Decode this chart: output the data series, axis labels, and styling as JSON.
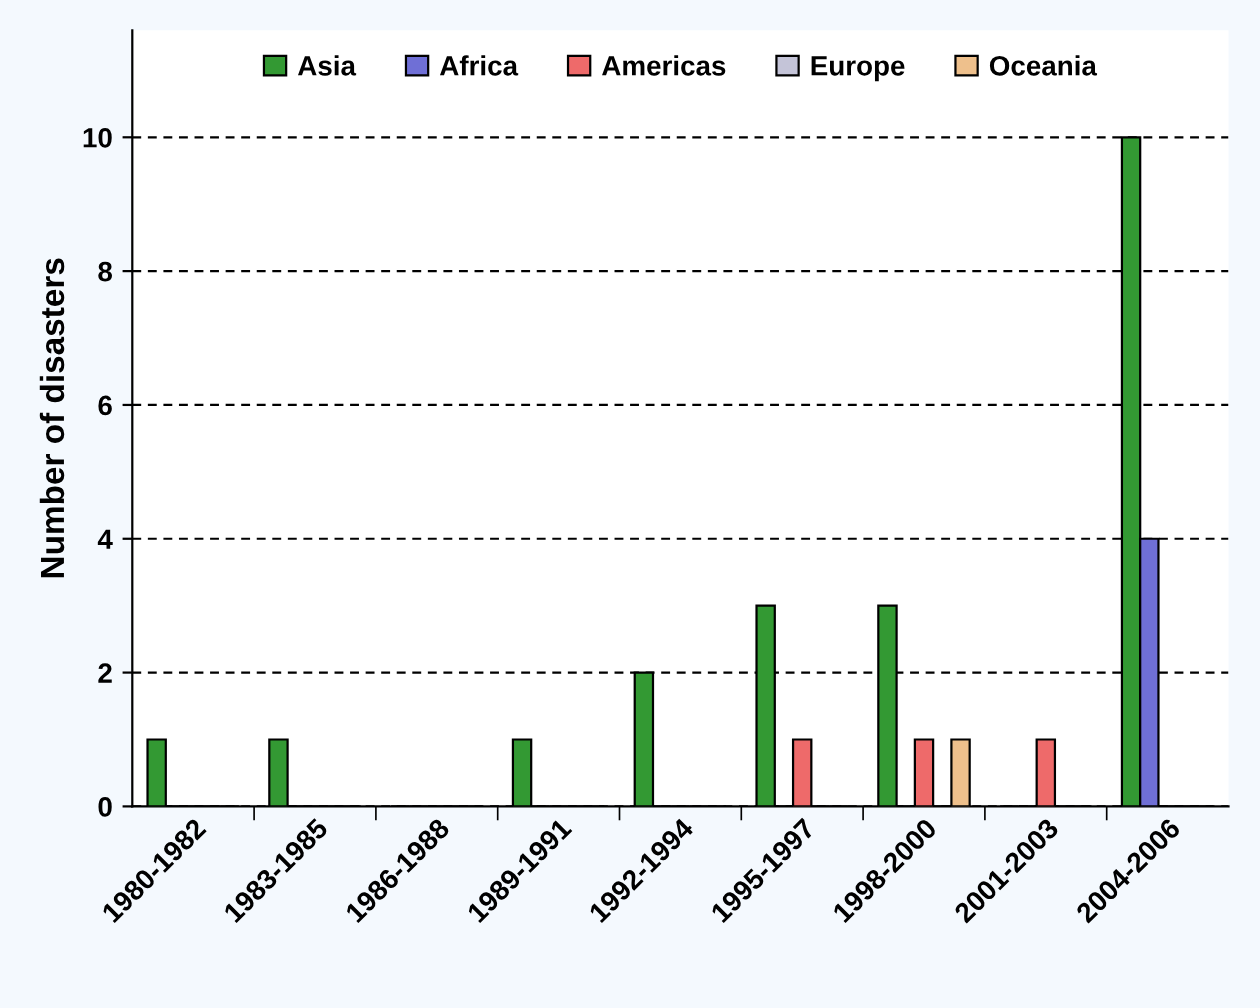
{
  "chart_data": {
    "type": "bar",
    "ylabel": "Number of disasters",
    "categories": [
      "1980-1982",
      "1983-1985",
      "1986-1988",
      "1989-1991",
      "1992-1994",
      "1995-1997",
      "1998-2000",
      "2001-2003",
      "2004-2006"
    ],
    "series": [
      {
        "name": "Asia",
        "color": "#339933",
        "values": [
          1,
          1,
          0,
          1,
          2,
          3,
          3,
          0,
          10
        ]
      },
      {
        "name": "Africa",
        "color": "#6f6fd6",
        "values": [
          0,
          0,
          0,
          0,
          0,
          0,
          0,
          0,
          4
        ]
      },
      {
        "name": "Americas",
        "color": "#ee6a6a",
        "values": [
          0,
          0,
          0,
          0,
          0,
          1,
          1,
          1,
          0
        ]
      },
      {
        "name": "Europe",
        "color": "#c4c4d8",
        "values": [
          0,
          0,
          0,
          0,
          0,
          0,
          0,
          0,
          0
        ]
      },
      {
        "name": "Oceania",
        "color": "#eec08c",
        "values": [
          0,
          0,
          0,
          0,
          0,
          0,
          1,
          0,
          0
        ]
      }
    ],
    "ylim": [
      0,
      11.6
    ],
    "yticks": [
      0,
      2,
      4,
      6,
      8,
      10
    ],
    "grid": "y",
    "legend": "top"
  }
}
